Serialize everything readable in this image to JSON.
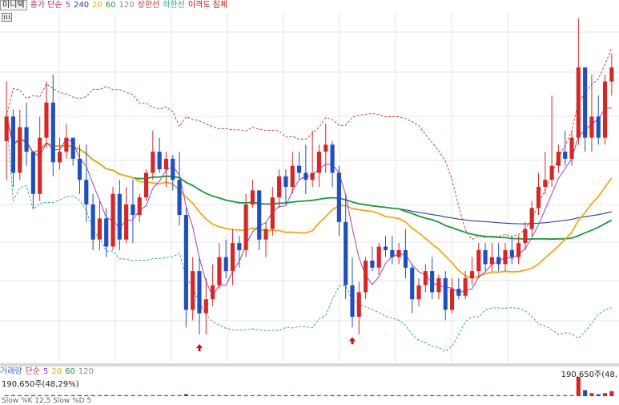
{
  "legend": {
    "stock_name": "미니텍",
    "indicator_label": "종가 단순",
    "ma_periods": [
      "5",
      "240",
      "20",
      "60",
      "120"
    ],
    "upper_band": "상한선",
    "lower_band": "하한선",
    "disparity": "이격도 침체"
  },
  "volume_legend": {
    "label": "거래량",
    "indicator_label": "단순",
    "ma_periods": [
      "5",
      "20",
      "60",
      "120"
    ],
    "left_value": "190,650주(48,29%)",
    "right_value": "190,650주(48,"
  },
  "stochastic_label": "Slow %K 12,5  Slow %D 5",
  "colors": {
    "up": "#d62728",
    "down": "#1f4fbf",
    "ma5": "#a040c0",
    "ma20": "#f0a818",
    "ma60": "#1a9a3a",
    "ma120": "#8c8c8c",
    "ma240": "#2a3f9a",
    "upper_band": "#c0392b",
    "lower_band": "#2a9d8f",
    "signal": "#cc1111"
  },
  "chart_data": {
    "type": "candlestick",
    "y_range": [
      0,
      100
    ],
    "candles": [
      [
        63,
        80,
        70,
        52
      ],
      [
        70,
        72,
        54,
        50
      ],
      [
        54,
        72,
        67,
        52
      ],
      [
        67,
        74,
        60,
        56
      ],
      [
        60,
        60,
        48,
        44
      ],
      [
        48,
        70,
        64,
        46
      ],
      [
        64,
        80,
        74,
        61
      ],
      [
        74,
        82,
        57,
        53
      ],
      [
        57,
        64,
        60,
        55
      ],
      [
        60,
        68,
        64,
        58
      ],
      [
        64,
        62,
        58,
        56
      ],
      [
        58,
        62,
        52,
        48
      ],
      [
        52,
        62,
        45,
        40
      ],
      [
        45,
        48,
        35,
        32
      ],
      [
        35,
        46,
        41,
        32
      ],
      [
        41,
        44,
        33,
        30
      ],
      [
        33,
        50,
        48,
        32
      ],
      [
        48,
        52,
        35,
        32
      ],
      [
        35,
        50,
        45,
        34
      ],
      [
        45,
        52,
        42,
        34
      ],
      [
        42,
        48,
        47,
        40
      ],
      [
        47,
        55,
        54,
        46
      ],
      [
        54,
        66,
        60,
        52
      ],
      [
        60,
        64,
        55,
        54
      ],
      [
        55,
        60,
        58,
        50
      ],
      [
        58,
        59,
        52,
        49
      ],
      [
        52,
        60,
        42,
        39
      ],
      [
        42,
        44,
        15,
        10
      ],
      [
        15,
        30,
        26,
        12
      ],
      [
        26,
        30,
        14,
        8
      ],
      [
        14,
        24,
        18,
        8
      ],
      [
        18,
        28,
        22,
        16
      ],
      [
        22,
        34,
        30,
        21
      ],
      [
        30,
        35,
        26,
        24
      ],
      [
        26,
        38,
        34,
        22
      ],
      [
        34,
        36,
        32,
        27
      ],
      [
        32,
        48,
        45,
        30
      ],
      [
        45,
        52,
        49,
        44
      ],
      [
        49,
        48,
        35,
        32
      ],
      [
        35,
        40,
        38,
        30
      ],
      [
        38,
        50,
        47,
        36
      ],
      [
        47,
        55,
        53,
        44
      ],
      [
        53,
        55,
        50,
        45
      ],
      [
        50,
        60,
        56,
        48
      ],
      [
        56,
        60,
        54,
        52
      ],
      [
        54,
        62,
        52,
        48
      ],
      [
        52,
        66,
        54,
        50
      ],
      [
        54,
        62,
        60,
        50
      ],
      [
        60,
        68,
        62,
        54
      ],
      [
        62,
        63,
        54,
        50
      ],
      [
        54,
        56,
        40,
        36
      ],
      [
        40,
        48,
        22,
        18
      ],
      [
        22,
        30,
        13,
        10
      ],
      [
        13,
        23,
        20,
        8
      ],
      [
        20,
        30,
        29,
        18
      ],
      [
        29,
        33,
        27,
        26
      ],
      [
        27,
        34,
        33,
        25
      ],
      [
        33,
        36,
        32,
        30
      ],
      [
        32,
        36,
        30,
        28
      ],
      [
        30,
        34,
        32,
        28
      ],
      [
        32,
        38,
        27,
        24
      ],
      [
        27,
        28,
        18,
        14
      ],
      [
        18,
        24,
        22,
        16
      ],
      [
        22,
        28,
        26,
        20
      ],
      [
        26,
        30,
        20,
        18
      ],
      [
        20,
        25,
        24,
        18
      ],
      [
        24,
        26,
        15,
        12
      ],
      [
        15,
        24,
        21,
        14
      ],
      [
        21,
        24,
        19,
        18
      ],
      [
        19,
        26,
        24,
        18
      ],
      [
        24,
        30,
        26,
        22
      ],
      [
        26,
        34,
        32,
        24
      ],
      [
        32,
        34,
        28,
        26
      ],
      [
        28,
        34,
        30,
        26
      ],
      [
        30,
        34,
        28,
        26
      ],
      [
        28,
        34,
        32,
        26
      ],
      [
        32,
        36,
        30,
        28
      ],
      [
        30,
        36,
        34,
        28
      ],
      [
        34,
        40,
        38,
        32
      ],
      [
        38,
        46,
        44,
        36
      ],
      [
        44,
        54,
        50,
        42
      ],
      [
        50,
        60,
        52,
        48
      ],
      [
        52,
        76,
        56,
        50
      ],
      [
        56,
        62,
        60,
        54
      ],
      [
        60,
        66,
        58,
        56
      ],
      [
        58,
        66,
        64,
        56
      ],
      [
        64,
        98,
        84,
        62
      ],
      [
        84,
        82,
        64,
        60
      ],
      [
        64,
        82,
        70,
        60
      ],
      [
        70,
        76,
        64,
        62
      ],
      [
        64,
        82,
        80,
        62
      ],
      [
        80,
        88,
        84,
        76
      ]
    ],
    "volumes": [
      1,
      1,
      1,
      1,
      1,
      1,
      1,
      1,
      1,
      1,
      1,
      1,
      1,
      1,
      1,
      1,
      1,
      1,
      1,
      1,
      1,
      1,
      1,
      1,
      1,
      1,
      1,
      2,
      1,
      1,
      1,
      1,
      1,
      1,
      1,
      1,
      1,
      1,
      1,
      1,
      1,
      1,
      1,
      1,
      1,
      1,
      1,
      1,
      1,
      1,
      1,
      1,
      1,
      1,
      1,
      1,
      1,
      1,
      1,
      1,
      1,
      1,
      1,
      1,
      1,
      1,
      1,
      1,
      1,
      1,
      1,
      1,
      1,
      1,
      1,
      1,
      1,
      1,
      1,
      1,
      1,
      1,
      1,
      1,
      1,
      1,
      19,
      6,
      3,
      2,
      3,
      5
    ],
    "signals": [
      29,
      52
    ]
  }
}
